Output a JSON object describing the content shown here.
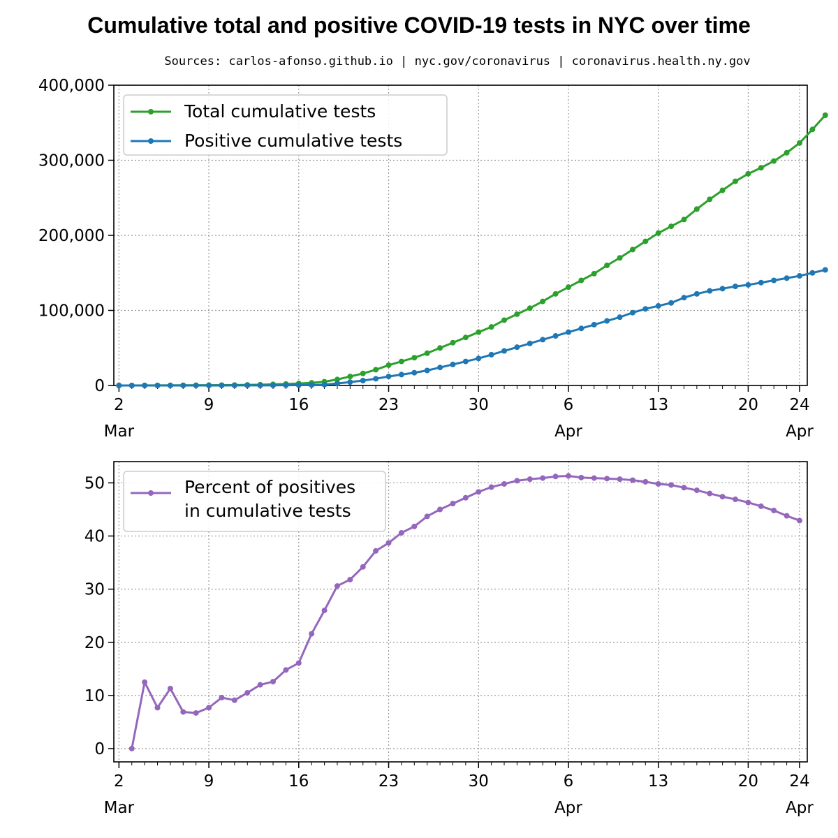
{
  "title": "Cumulative total and positive COVID-19 tests in NYC over time",
  "subtitle": "Sources: carlos-afonso.github.io | nyc.gov/coronavirus | coronavirus.health.ny.gov",
  "colors": {
    "total": "#2ca02c",
    "positive": "#1f77b4",
    "percent": "#9467bd",
    "grid": "#999999"
  },
  "x_axis": {
    "ticks": [
      {
        "day": 2,
        "label": "2",
        "sublabel": "Mar"
      },
      {
        "day": 9,
        "label": "9",
        "sublabel": ""
      },
      {
        "day": 16,
        "label": "16",
        "sublabel": ""
      },
      {
        "day": 23,
        "label": "23",
        "sublabel": ""
      },
      {
        "day": 30,
        "label": "30",
        "sublabel": ""
      },
      {
        "day": 37,
        "label": "6",
        "sublabel": "Apr"
      },
      {
        "day": 44,
        "label": "13",
        "sublabel": ""
      },
      {
        "day": 51,
        "label": "20",
        "sublabel": ""
      },
      {
        "day": 55,
        "label": "24",
        "sublabel": "Apr"
      }
    ]
  },
  "chart_data": [
    {
      "type": "line",
      "x_start": "2020-03-02",
      "x_end": "2020-04-24",
      "ylim": [
        0,
        400000
      ],
      "yticks": [
        "0",
        "100,000",
        "200,000",
        "300,000",
        "400,000"
      ],
      "ytick_values": [
        0,
        100000,
        200000,
        300000,
        400000
      ],
      "grid": true,
      "legend": "top-left",
      "series": [
        {
          "name": "Total cumulative tests",
          "color_key": "total",
          "start_day": 2,
          "values": [
            0,
            0,
            100,
            150,
            200,
            250,
            300,
            400,
            500,
            600,
            800,
            1100,
            1500,
            2000,
            2700,
            3500,
            5000,
            8000,
            12000,
            16000,
            21000,
            27000,
            32000,
            37000,
            43000,
            50000,
            57000,
            64000,
            71000,
            78000,
            87000,
            95000,
            103000,
            112000,
            122000,
            131000,
            140000,
            149000,
            160000,
            170000,
            181000,
            192000,
            203000,
            212000,
            221000,
            235000,
            248000,
            260000,
            272000,
            282000,
            290000,
            299000,
            310000,
            323000,
            341000,
            360000
          ]
        },
        {
          "name": "Positive cumulative tests",
          "color_key": "positive",
          "start_day": 2,
          "values": [
            0,
            0,
            10,
            12,
            20,
            20,
            22,
            30,
            50,
            60,
            90,
            120,
            200,
            300,
            450,
            650,
            1100,
            2700,
            4500,
            6500,
            9000,
            12000,
            14500,
            17000,
            20000,
            24000,
            28000,
            32000,
            36000,
            41000,
            46000,
            51000,
            56000,
            61000,
            66000,
            71000,
            76000,
            81000,
            86000,
            91000,
            97000,
            102000,
            106000,
            110000,
            117000,
            122000,
            126000,
            129000,
            132000,
            134000,
            137000,
            140000,
            143000,
            146000,
            150000,
            154000
          ]
        }
      ]
    },
    {
      "type": "line",
      "x_start": "2020-03-02",
      "x_end": "2020-04-24",
      "ylim": [
        -2.5,
        54
      ],
      "yticks": [
        "0",
        "10",
        "20",
        "30",
        "40",
        "50"
      ],
      "ytick_values": [
        0,
        10,
        20,
        30,
        40,
        50
      ],
      "grid": true,
      "legend": "top-left",
      "series": [
        {
          "name": "Percent of positives\nin cumulative tests",
          "name_lines": [
            "Percent of positives",
            "in cumulative tests"
          ],
          "color_key": "percent",
          "start_day": 3,
          "values": [
            0,
            12.5,
            7.7,
            11.3,
            6.9,
            6.7,
            7.7,
            9.6,
            9.1,
            10.5,
            12.0,
            12.6,
            14.8,
            16.1,
            21.6,
            26.0,
            30.6,
            31.8,
            34.2,
            37.2,
            38.7,
            40.6,
            41.8,
            43.7,
            45.0,
            46.1,
            47.2,
            48.3,
            49.2,
            49.8,
            50.4,
            50.7,
            50.9,
            51.2,
            51.3,
            51.0,
            50.9,
            50.8,
            50.7,
            50.5,
            50.2,
            49.8,
            49.6,
            49.1,
            48.6,
            48.0,
            47.4,
            46.9,
            46.3,
            45.6,
            44.8,
            43.8,
            42.9
          ]
        }
      ]
    }
  ]
}
